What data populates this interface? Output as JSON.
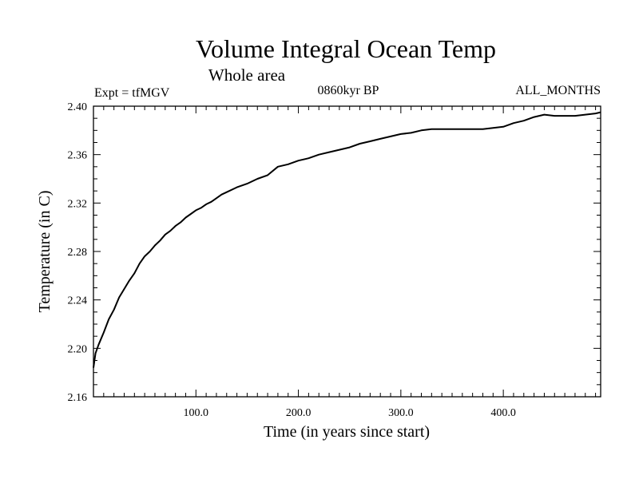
{
  "chart_data": {
    "type": "line",
    "title": "Volume Integral Ocean Temp",
    "subtitle": "Whole area",
    "expt_label": "Expt = tfMGV",
    "period_label": "0860kyr BP",
    "months_label": "ALL_MONTHS",
    "xlabel": "Time (in years since start)",
    "ylabel": "Temperature (in C)",
    "xlim": [
      0,
      495
    ],
    "ylim": [
      2.16,
      2.4
    ],
    "xticks": [
      100,
      200,
      300,
      400
    ],
    "xtick_labels": [
      "100.0",
      "200.0",
      "300.0",
      "400.0"
    ],
    "yticks": [
      2.16,
      2.2,
      2.24,
      2.28,
      2.32,
      2.36,
      2.4
    ],
    "ytick_labels": [
      "2.16",
      "2.20",
      "2.24",
      "2.28",
      "2.32",
      "2.36",
      "2.40"
    ],
    "grid": false,
    "series": [
      {
        "name": "Volume Integral Ocean Temp",
        "color": "#000000",
        "x": [
          0,
          2,
          5,
          10,
          15,
          20,
          25,
          30,
          35,
          40,
          45,
          50,
          55,
          60,
          65,
          70,
          75,
          80,
          85,
          90,
          95,
          100,
          105,
          110,
          115,
          120,
          125,
          130,
          140,
          150,
          160,
          170,
          180,
          190,
          200,
          210,
          220,
          230,
          240,
          250,
          260,
          270,
          280,
          290,
          300,
          310,
          320,
          330,
          340,
          350,
          360,
          370,
          380,
          390,
          400,
          410,
          420,
          430,
          440,
          450,
          460,
          470,
          480,
          490,
          495
        ],
        "values": [
          2.184,
          2.196,
          2.203,
          2.213,
          2.224,
          2.232,
          2.242,
          2.249,
          2.256,
          2.262,
          2.27,
          2.276,
          2.28,
          2.285,
          2.289,
          2.294,
          2.297,
          2.301,
          2.304,
          2.308,
          2.311,
          2.314,
          2.316,
          2.319,
          2.321,
          2.324,
          2.327,
          2.329,
          2.333,
          2.336,
          2.34,
          2.343,
          2.35,
          2.352,
          2.355,
          2.357,
          2.36,
          2.362,
          2.364,
          2.366,
          2.369,
          2.371,
          2.373,
          2.375,
          2.377,
          2.378,
          2.38,
          2.381,
          2.381,
          2.381,
          2.381,
          2.381,
          2.381,
          2.382,
          2.383,
          2.386,
          2.388,
          2.391,
          2.393,
          2.392,
          2.392,
          2.392,
          2.393,
          2.394,
          2.395
        ]
      }
    ]
  }
}
